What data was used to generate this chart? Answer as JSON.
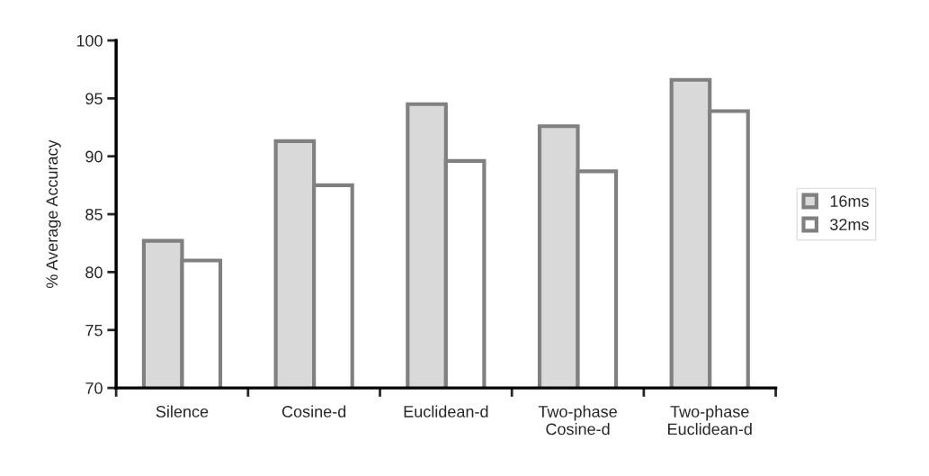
{
  "chart_data": {
    "type": "bar",
    "ylabel": "% Average Accuracy",
    "categories": [
      "Silence",
      "Cosine-d",
      "Euclidean-d",
      "Two-phase\nCosine-d",
      "Two-phase\nEuclidean-d"
    ],
    "series": [
      {
        "name": "16ms",
        "color": "#d9d9d9",
        "values": [
          82.7,
          91.3,
          94.5,
          92.6,
          96.6
        ]
      },
      {
        "name": "32ms",
        "color": "#ffffff",
        "values": [
          81.0,
          87.5,
          89.6,
          88.7,
          93.9
        ]
      }
    ],
    "ylim": [
      70,
      100
    ],
    "yticks": [
      70,
      75,
      80,
      85,
      90,
      95,
      100
    ],
    "grid": false,
    "legend": "right"
  }
}
